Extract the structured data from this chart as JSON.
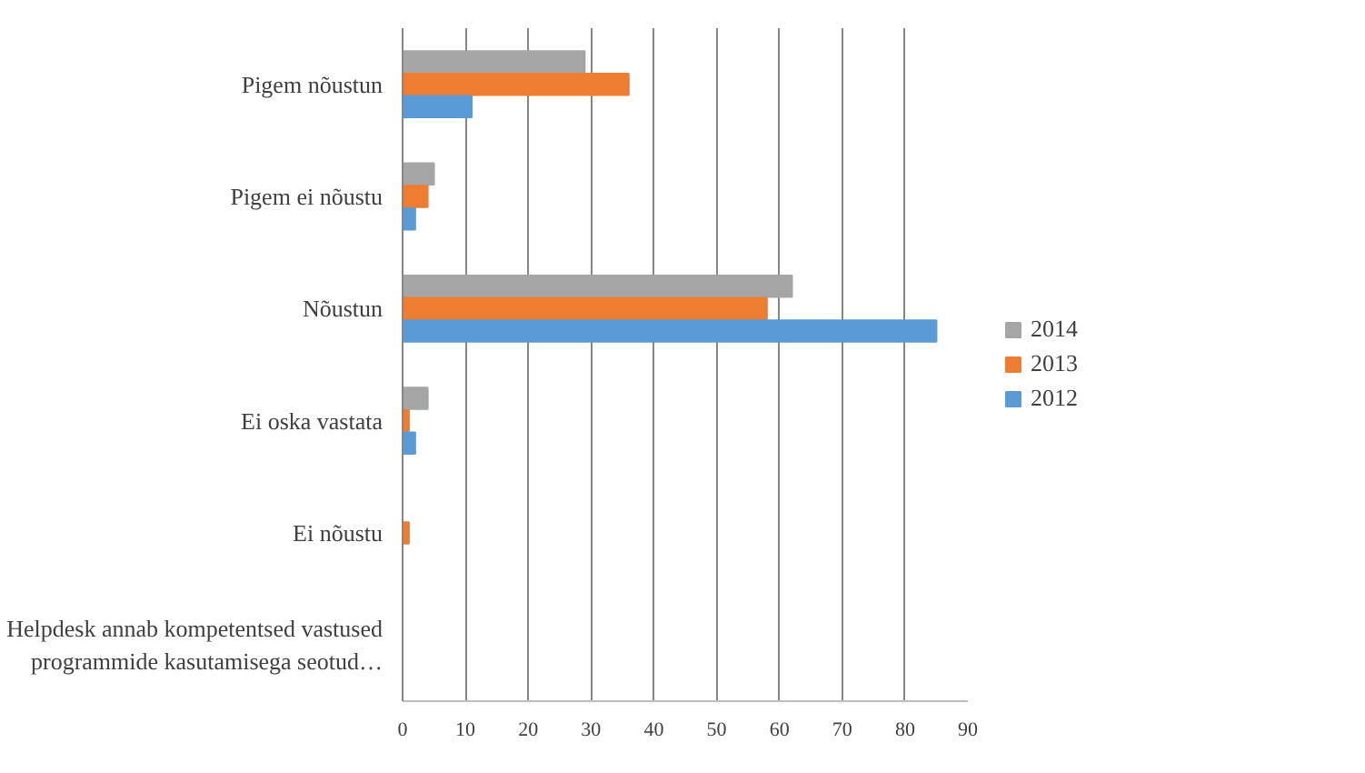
{
  "chart_data": {
    "type": "bar",
    "orientation": "horizontal",
    "categories": [
      "Pigem nõustun",
      "Pigem ei nõustu",
      "Nõustun",
      "Ei oska vastata",
      "Ei nõustu",
      "Helpdesk annab kompetentsed vastused programmide kasutamisega seotud…"
    ],
    "series": [
      {
        "name": "2014",
        "color": "#a5a5a5",
        "values": [
          29,
          5,
          62,
          4,
          null,
          null
        ]
      },
      {
        "name": "2013",
        "color": "#ed7d31",
        "values": [
          36,
          4,
          58,
          1,
          1,
          null
        ]
      },
      {
        "name": "2012",
        "color": "#5b9bd5",
        "values": [
          11,
          2,
          85,
          2,
          null,
          null
        ]
      }
    ],
    "xlim": [
      0,
      90
    ],
    "xticks": [
      0,
      10,
      20,
      30,
      40,
      50,
      60,
      70,
      80,
      90
    ],
    "grid": "x",
    "legend": "right"
  }
}
